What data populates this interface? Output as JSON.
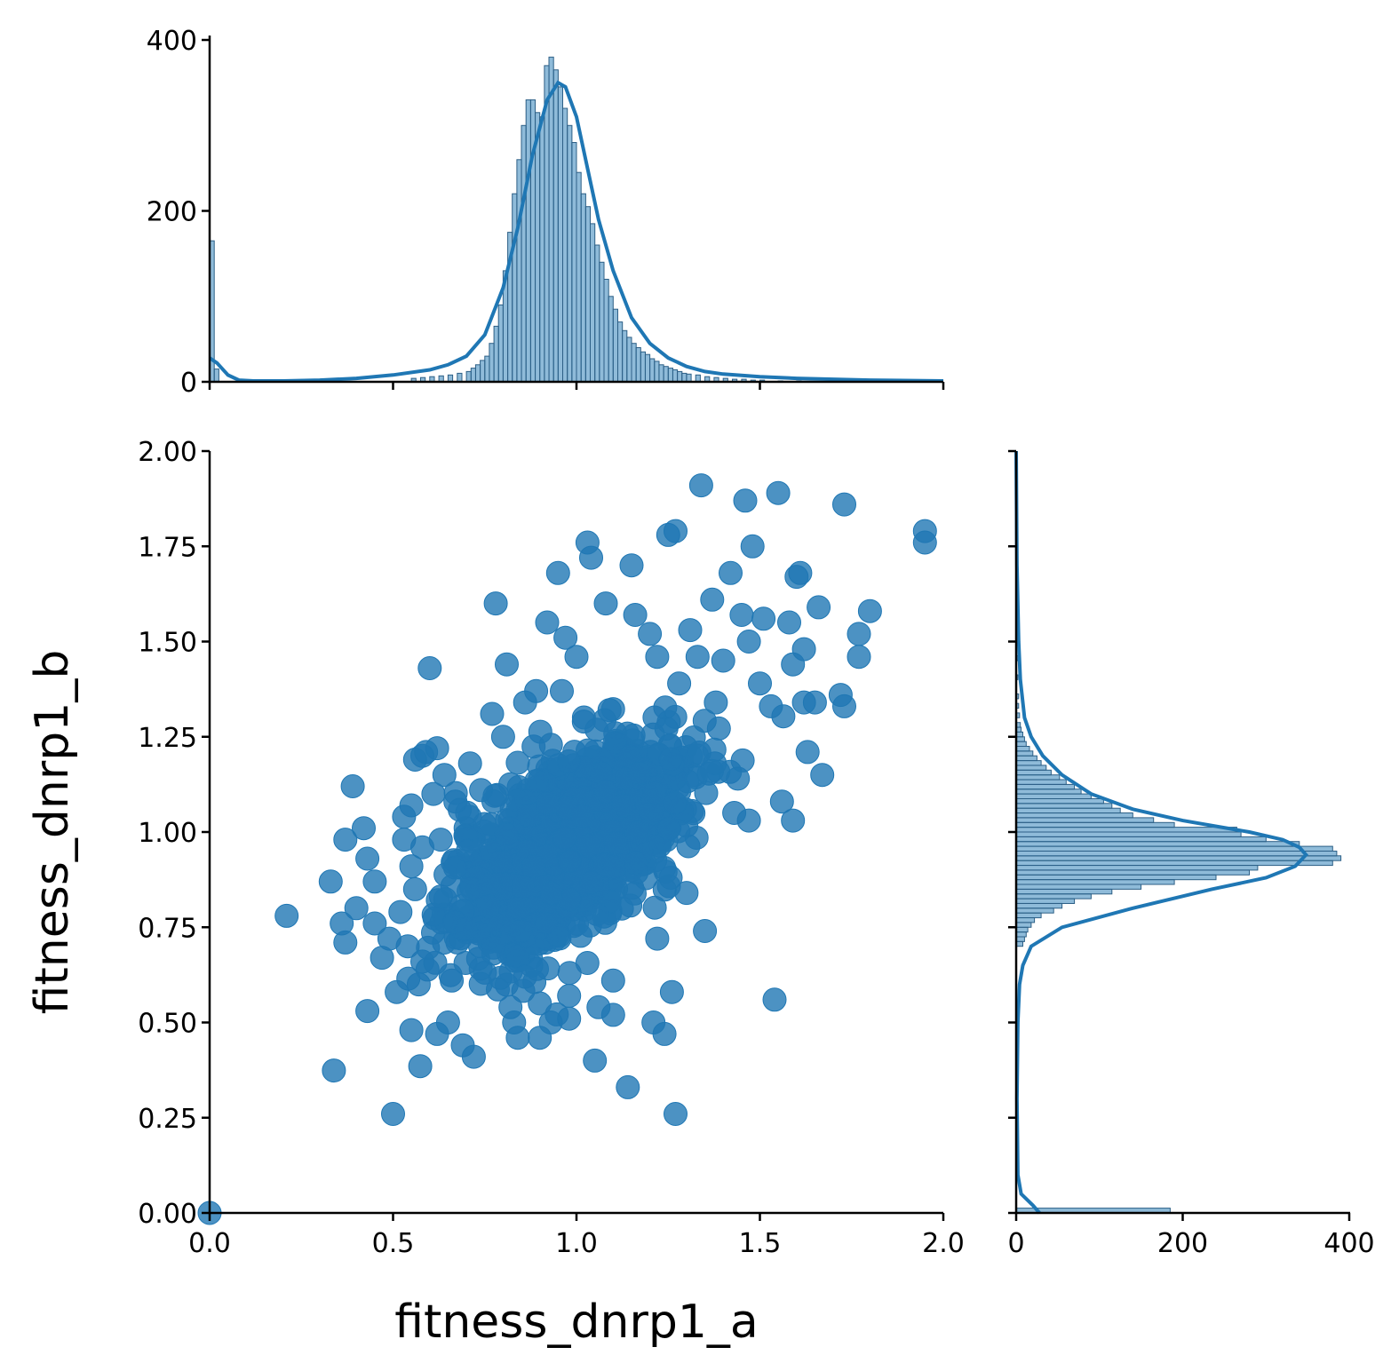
{
  "chart_data": [
    {
      "type": "scatter",
      "panel": "joint",
      "xlabel": "fitness_dnrp1_a",
      "ylabel": "fitness_dnrp1_b",
      "xlim": [
        0,
        2
      ],
      "ylim": [
        0,
        2
      ],
      "x_ticks": [
        "0.0",
        "0.5",
        "1.0",
        "1.5",
        "2.0"
      ],
      "y_ticks": [
        "0.00",
        "0.25",
        "0.50",
        "0.75",
        "1.00",
        "1.25",
        "1.50",
        "1.75",
        "2.00"
      ],
      "grid": false,
      "color": "#1f77b4",
      "points": [
        [
          0.21,
          0.78
        ],
        [
          0.33,
          0.87
        ],
        [
          0.36,
          0.76
        ],
        [
          0.37,
          0.71
        ],
        [
          0.37,
          0.98
        ],
        [
          0.39,
          1.12
        ],
        [
          0.4,
          0.8
        ],
        [
          0.42,
          1.01
        ],
        [
          0.43,
          0.93
        ],
        [
          0.43,
          0.53
        ],
        [
          0.45,
          0.87
        ],
        [
          0.45,
          0.76
        ],
        [
          0.47,
          0.67
        ],
        [
          0.49,
          0.72
        ],
        [
          0.5,
          0.26
        ],
        [
          0.51,
          0.58
        ],
        [
          0.52,
          0.79
        ],
        [
          0.53,
          1.04
        ],
        [
          0.53,
          0.98
        ],
        [
          0.54,
          0.7
        ],
        [
          0.55,
          1.07
        ],
        [
          0.55,
          0.91
        ],
        [
          0.55,
          0.48
        ],
        [
          0.56,
          1.19
        ],
        [
          0.56,
          0.85
        ],
        [
          0.57,
          0.6
        ],
        [
          0.58,
          1.2
        ],
        [
          0.58,
          0.96
        ],
        [
          0.58,
          0.66
        ],
        [
          0.59,
          1.21
        ],
        [
          0.6,
          1.43
        ],
        [
          0.61,
          1.1
        ],
        [
          0.62,
          1.22
        ],
        [
          0.62,
          0.47
        ],
        [
          0.63,
          0.98
        ],
        [
          0.64,
          1.15
        ],
        [
          0.65,
          0.5
        ],
        [
          0.66,
          0.61
        ],
        [
          0.67,
          1.08
        ],
        [
          0.69,
          0.44
        ],
        [
          0.71,
          1.18
        ],
        [
          0.72,
          0.41
        ],
        [
          0.74,
          1.11
        ],
        [
          0.77,
          1.31
        ],
        [
          0.78,
          1.6
        ],
        [
          0.8,
          1.25
        ],
        [
          0.81,
          1.44
        ],
        [
          0.82,
          0.54
        ],
        [
          0.83,
          0.5
        ],
        [
          0.84,
          0.46
        ],
        [
          0.86,
          1.34
        ],
        [
          0.86,
          0.62
        ],
        [
          0.89,
          1.37
        ],
        [
          0.9,
          0.55
        ],
        [
          0.9,
          0.46
        ],
        [
          0.92,
          1.55
        ],
        [
          0.93,
          0.5
        ],
        [
          0.95,
          1.68
        ],
        [
          0.96,
          1.37
        ],
        [
          0.97,
          1.51
        ],
        [
          0.98,
          0.57
        ],
        [
          0.98,
          0.51
        ],
        [
          1.0,
          1.46
        ],
        [
          1.02,
          1.29
        ],
        [
          1.03,
          1.76
        ],
        [
          1.04,
          1.72
        ],
        [
          1.05,
          0.4
        ],
        [
          1.06,
          0.54
        ],
        [
          1.08,
          1.6
        ],
        [
          1.09,
          1.32
        ],
        [
          1.1,
          0.61
        ],
        [
          1.1,
          0.52
        ],
        [
          1.14,
          0.33
        ],
        [
          1.15,
          1.7
        ],
        [
          1.16,
          1.57
        ],
        [
          1.2,
          1.52
        ],
        [
          1.21,
          0.5
        ],
        [
          1.22,
          1.46
        ],
        [
          1.22,
          0.72
        ],
        [
          1.24,
          0.47
        ],
        [
          1.25,
          1.78
        ],
        [
          1.26,
          0.58
        ],
        [
          1.27,
          1.79
        ],
        [
          1.27,
          0.26
        ],
        [
          1.28,
          1.39
        ],
        [
          1.3,
          0.84
        ],
        [
          1.31,
          1.53
        ],
        [
          1.33,
          1.46
        ],
        [
          1.34,
          1.91
        ],
        [
          1.35,
          0.74
        ],
        [
          1.37,
          1.61
        ],
        [
          1.38,
          1.34
        ],
        [
          1.4,
          1.45
        ],
        [
          1.42,
          1.68
        ],
        [
          1.43,
          1.05
        ],
        [
          1.44,
          1.14
        ],
        [
          1.45,
          1.57
        ],
        [
          1.46,
          1.87
        ],
        [
          1.47,
          1.5
        ],
        [
          1.47,
          1.03
        ],
        [
          1.48,
          1.75
        ],
        [
          1.5,
          1.39
        ],
        [
          1.51,
          1.56
        ],
        [
          1.53,
          1.33
        ],
        [
          1.54,
          0.56
        ],
        [
          1.55,
          1.89
        ],
        [
          1.56,
          1.08
        ],
        [
          1.58,
          1.55
        ],
        [
          1.59,
          1.44
        ],
        [
          1.59,
          1.03
        ],
        [
          1.6,
          1.67
        ],
        [
          1.61,
          1.68
        ],
        [
          1.62,
          1.48
        ],
        [
          1.62,
          1.34
        ],
        [
          1.63,
          1.21
        ],
        [
          1.65,
          1.34
        ],
        [
          1.66,
          1.59
        ],
        [
          1.67,
          1.15
        ],
        [
          1.72,
          1.36
        ],
        [
          1.73,
          1.33
        ],
        [
          1.73,
          1.86
        ],
        [
          1.77,
          1.52
        ],
        [
          1.77,
          1.46
        ],
        [
          1.8,
          1.58
        ],
        [
          1.95,
          1.79
        ],
        [
          1.95,
          1.76
        ],
        [
          0.0,
          0.0
        ]
      ]
    },
    {
      "type": "bar",
      "panel": "top-marginal",
      "description_kind": "histogram with kde",
      "xlim": [
        0,
        2
      ],
      "ylim": [
        0,
        400
      ],
      "y_ticks": [
        "0",
        "200",
        "400"
      ],
      "color": "#1f77b4",
      "bin_width": 0.0125,
      "bin_starts_x": [
        0.0,
        0.0125,
        0.55,
        0.575,
        0.6,
        0.625,
        0.65,
        0.675,
        0.7,
        0.7125,
        0.725,
        0.7375,
        0.75,
        0.7625,
        0.775,
        0.7875,
        0.8,
        0.8125,
        0.825,
        0.8375,
        0.85,
        0.8625,
        0.875,
        0.8875,
        0.9,
        0.9125,
        0.925,
        0.9375,
        0.95,
        0.9625,
        0.975,
        0.9875,
        1.0,
        1.0125,
        1.025,
        1.0375,
        1.05,
        1.0625,
        1.075,
        1.0875,
        1.1,
        1.1125,
        1.125,
        1.1375,
        1.15,
        1.1625,
        1.175,
        1.1875,
        1.2,
        1.2125,
        1.225,
        1.2375,
        1.25,
        1.2625,
        1.275,
        1.2875,
        1.3,
        1.325,
        1.35,
        1.375,
        1.4,
        1.425,
        1.45,
        1.475,
        1.5,
        1.55,
        1.6
      ],
      "counts": [
        165,
        15,
        4,
        5,
        6,
        7,
        8,
        10,
        12,
        16,
        20,
        25,
        30,
        45,
        65,
        90,
        130,
        175,
        220,
        260,
        300,
        330,
        330,
        315,
        310,
        370,
        380,
        365,
        345,
        320,
        300,
        280,
        245,
        220,
        205,
        185,
        160,
        140,
        120,
        100,
        85,
        70,
        60,
        52,
        45,
        40,
        35,
        32,
        27,
        24,
        20,
        18,
        16,
        14,
        12,
        10,
        9,
        8,
        6,
        5,
        4,
        3,
        3,
        2,
        2,
        1,
        1
      ],
      "kde_x": [
        0.0,
        0.02,
        0.05,
        0.08,
        0.12,
        0.2,
        0.3,
        0.4,
        0.5,
        0.6,
        0.65,
        0.7,
        0.75,
        0.8,
        0.84,
        0.88,
        0.92,
        0.95,
        0.97,
        1.0,
        1.03,
        1.06,
        1.1,
        1.15,
        1.2,
        1.25,
        1.3,
        1.35,
        1.4,
        1.5,
        1.6,
        1.7,
        1.8,
        2.0
      ],
      "kde_y": [
        28,
        22,
        8,
        2,
        1,
        1,
        2,
        4,
        8,
        14,
        20,
        30,
        55,
        110,
        180,
        265,
        330,
        350,
        345,
        310,
        250,
        190,
        130,
        75,
        45,
        28,
        18,
        12,
        9,
        6,
        4,
        3,
        2,
        1
      ]
    },
    {
      "type": "bar",
      "panel": "right-marginal",
      "description_kind": "histogram with kde",
      "ylim": [
        0,
        2
      ],
      "xlim": [
        0,
        400
      ],
      "x_ticks": [
        "0",
        "200",
        "400"
      ],
      "color": "#1f77b4",
      "bin_width": 0.0125,
      "bin_starts_y": [
        0.0,
        0.7,
        0.7125,
        0.725,
        0.7375,
        0.75,
        0.7625,
        0.775,
        0.7875,
        0.8,
        0.8125,
        0.825,
        0.8375,
        0.85,
        0.8625,
        0.875,
        0.8875,
        0.9,
        0.9125,
        0.925,
        0.9375,
        0.95,
        0.9625,
        0.975,
        0.9875,
        1.0,
        1.0125,
        1.025,
        1.0375,
        1.05,
        1.0625,
        1.075,
        1.0875,
        1.1,
        1.1125,
        1.125,
        1.1375,
        1.15,
        1.1625,
        1.175,
        1.1875,
        1.2,
        1.2125,
        1.225,
        1.2375,
        1.25,
        1.2625,
        1.275,
        1.3,
        1.325,
        1.35,
        1.4,
        1.45,
        1.5
      ],
      "counts": [
        185,
        8,
        10,
        12,
        14,
        18,
        22,
        30,
        45,
        55,
        70,
        90,
        115,
        150,
        190,
        240,
        280,
        290,
        380,
        390,
        385,
        380,
        340,
        300,
        270,
        265,
        190,
        165,
        140,
        125,
        115,
        105,
        90,
        78,
        70,
        60,
        52,
        42,
        36,
        30,
        25,
        20,
        16,
        12,
        10,
        8,
        6,
        5,
        4,
        3,
        3,
        2,
        2,
        1
      ],
      "kde_y": [
        0.0,
        0.02,
        0.05,
        0.1,
        0.3,
        0.5,
        0.6,
        0.65,
        0.7,
        0.75,
        0.8,
        0.85,
        0.88,
        0.91,
        0.94,
        0.96,
        0.98,
        1.0,
        1.03,
        1.06,
        1.1,
        1.15,
        1.2,
        1.25,
        1.3,
        1.4,
        1.5,
        1.7,
        2.0
      ],
      "kde_x": [
        28,
        20,
        6,
        2,
        1,
        2,
        4,
        8,
        18,
        55,
        140,
        235,
        300,
        335,
        348,
        340,
        320,
        280,
        200,
        140,
        90,
        55,
        32,
        18,
        10,
        5,
        3,
        1,
        0
      ]
    }
  ]
}
